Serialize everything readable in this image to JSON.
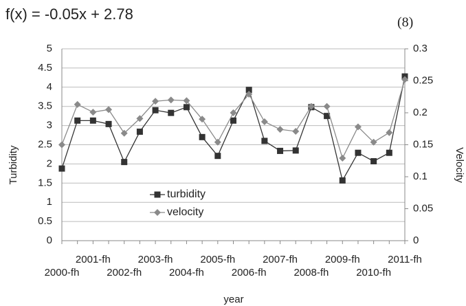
{
  "chart_data": {
    "type": "line",
    "title": "f(x) = -0.05x + 2.78",
    "annotation": "(8)",
    "x_label": "year",
    "y_label": "Turbidity",
    "y2_label": "Velocity",
    "categories": [
      "2000-fh",
      null,
      "2001-fh",
      null,
      "2002-fh",
      null,
      "2003-fh",
      null,
      "2004-fh",
      null,
      "2005-fh",
      null,
      "2006-fh",
      null,
      "2007-fh",
      null,
      "2008-fh",
      null,
      "2009-fh",
      null,
      "2010-fh",
      null,
      "2011-fh"
    ],
    "series": [
      {
        "name": "turbidity",
        "color": "#333333",
        "marker": "square",
        "axis": "y",
        "values": [
          1.88,
          3.13,
          3.13,
          3.04,
          2.05,
          2.84,
          3.4,
          3.33,
          3.48,
          2.7,
          2.21,
          3.13,
          3.93,
          2.6,
          2.34,
          2.35,
          3.48,
          3.25,
          1.57,
          2.29,
          2.07,
          2.29,
          4.28
        ]
      },
      {
        "name": "velocity",
        "color": "#8a8a8a",
        "marker": "diamond",
        "axis": "y2",
        "values": [
          0.15,
          0.213,
          0.201,
          0.205,
          0.168,
          0.191,
          0.218,
          0.22,
          0.219,
          0.19,
          0.154,
          0.2,
          0.229,
          0.186,
          0.174,
          0.171,
          0.21,
          0.21,
          0.129,
          0.178,
          0.154,
          0.169,
          0.252
        ]
      }
    ],
    "ylim": [
      0,
      5
    ],
    "yticks": [
      0,
      0.5,
      1,
      1.5,
      2,
      2.5,
      3,
      3.5,
      4,
      4.5,
      5
    ],
    "y2lim": [
      0,
      0.3
    ],
    "y2ticks": [
      0,
      0.05,
      0.1,
      0.15,
      0.2,
      0.25,
      0.3
    ],
    "grid": true
  }
}
